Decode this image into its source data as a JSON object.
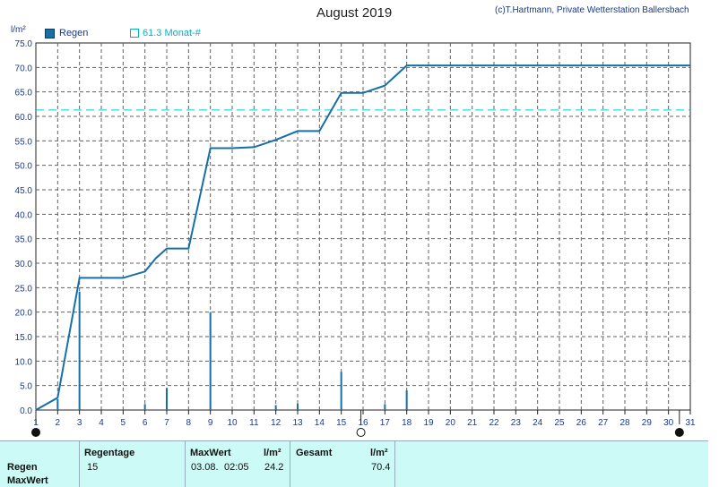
{
  "header": {
    "title": "August 2019",
    "credit": "(c)T.Hartmann, Private Wetterstation Ballersbach",
    "unit": "l/m²"
  },
  "legend": {
    "regen_label": "Regen",
    "month_label": "61.3 Monat-#"
  },
  "colors": {
    "series": "#1670a8",
    "month_line": "#00c8dc",
    "grid": "#606060",
    "text": "#1a3a8a",
    "panel": "#ccfaf6"
  },
  "chart_data": {
    "type": "line",
    "title": "August 2019",
    "ylabel": "l/m²",
    "ylim": [
      0,
      75
    ],
    "yticks": [
      "0.0",
      "5.0",
      "10.0",
      "15.0",
      "20.0",
      "25.0",
      "30.0",
      "35.0",
      "40.0",
      "45.0",
      "50.0",
      "55.0",
      "60.0",
      "65.0",
      "70.0",
      "75.0"
    ],
    "xticks": [
      "1",
      "2",
      "3",
      "4",
      "5",
      "6",
      "7",
      "8",
      "9",
      "10",
      "11",
      "12",
      "13",
      "14",
      "15",
      "16",
      "17",
      "18",
      "19",
      "20",
      "21",
      "22",
      "23",
      "24",
      "25",
      "26",
      "27",
      "28",
      "29",
      "30",
      "31"
    ],
    "grid": true,
    "month_mean": 61.3,
    "series": [
      {
        "name": "Regen",
        "kind": "bar",
        "points": [
          [
            2,
            2.2
          ],
          [
            3,
            24.2
          ],
          [
            6,
            1.2
          ],
          [
            7,
            4.5
          ],
          [
            9,
            20.0
          ],
          [
            12,
            1.0
          ],
          [
            13,
            1.3
          ],
          [
            15,
            7.8
          ],
          [
            17,
            1.2
          ],
          [
            18,
            4.0
          ]
        ]
      },
      {
        "name": "cumulative",
        "kind": "line",
        "points": [
          [
            1,
            0.0
          ],
          [
            2,
            2.5
          ],
          [
            3,
            27.0
          ],
          [
            4,
            27.0
          ],
          [
            5,
            27.0
          ],
          [
            6,
            28.3
          ],
          [
            6.5,
            31.0
          ],
          [
            7,
            33.0
          ],
          [
            8,
            33.0
          ],
          [
            9,
            53.5
          ],
          [
            10,
            53.5
          ],
          [
            11,
            53.7
          ],
          [
            12,
            55.2
          ],
          [
            13,
            57.0
          ],
          [
            14,
            57.0
          ],
          [
            15,
            64.8
          ],
          [
            16,
            64.8
          ],
          [
            17,
            66.3
          ],
          [
            18,
            70.4
          ],
          [
            31,
            70.4
          ]
        ]
      }
    ]
  },
  "moon_symbols": [
    "●",
    "○",
    "●"
  ],
  "summary": {
    "header_regentage": "Regentage",
    "header_maxwert": "MaxWert",
    "header_unit1": "l/m²",
    "header_gesamt": "Gesamt",
    "header_unit2": "l/m²",
    "row1_label": "Regen",
    "row2_label": "MaxWert",
    "regentage": "15",
    "max_date": "03.08.",
    "max_time": "02:05",
    "max_value": "24.2",
    "total": "70.4"
  }
}
